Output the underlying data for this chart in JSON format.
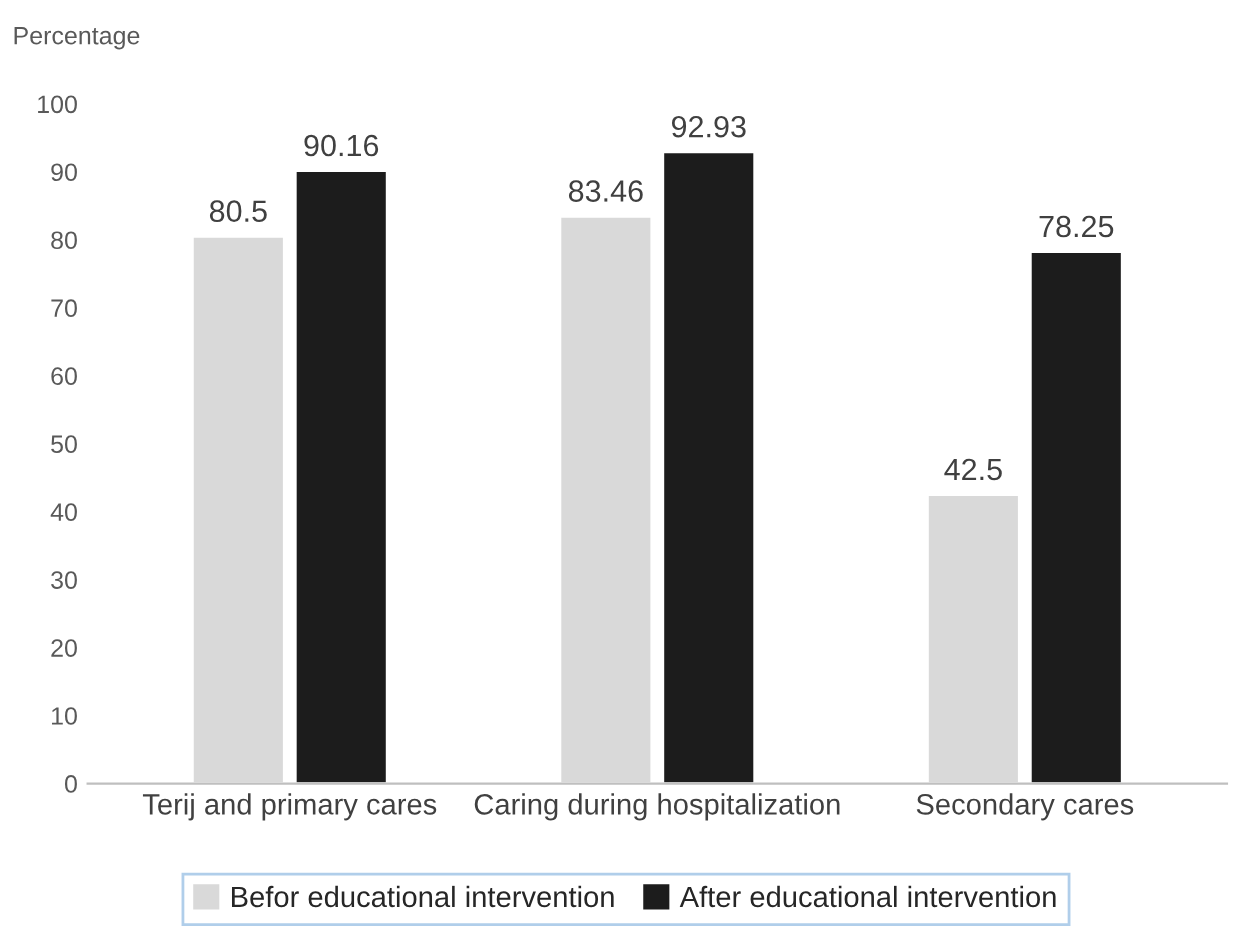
{
  "chart_data": {
    "type": "bar",
    "ylabel": "Percentage",
    "categories": [
      "Terij and primary cares",
      "Caring during hospitalization",
      "Secondary cares"
    ],
    "series": [
      {
        "name": "Befor educational intervention",
        "color": "#d9d9d9",
        "values": [
          80.5,
          83.46,
          42.5
        ]
      },
      {
        "name": "After educational intervention",
        "color": "#1c1c1c",
        "values": [
          90.16,
          92.93,
          78.25
        ]
      }
    ],
    "ylim": [
      0,
      100
    ],
    "yticks": [
      0,
      10,
      20,
      30,
      40,
      50,
      60,
      70,
      80,
      90,
      100
    ],
    "data_labels": true,
    "legend": "bottom",
    "grid": false
  }
}
